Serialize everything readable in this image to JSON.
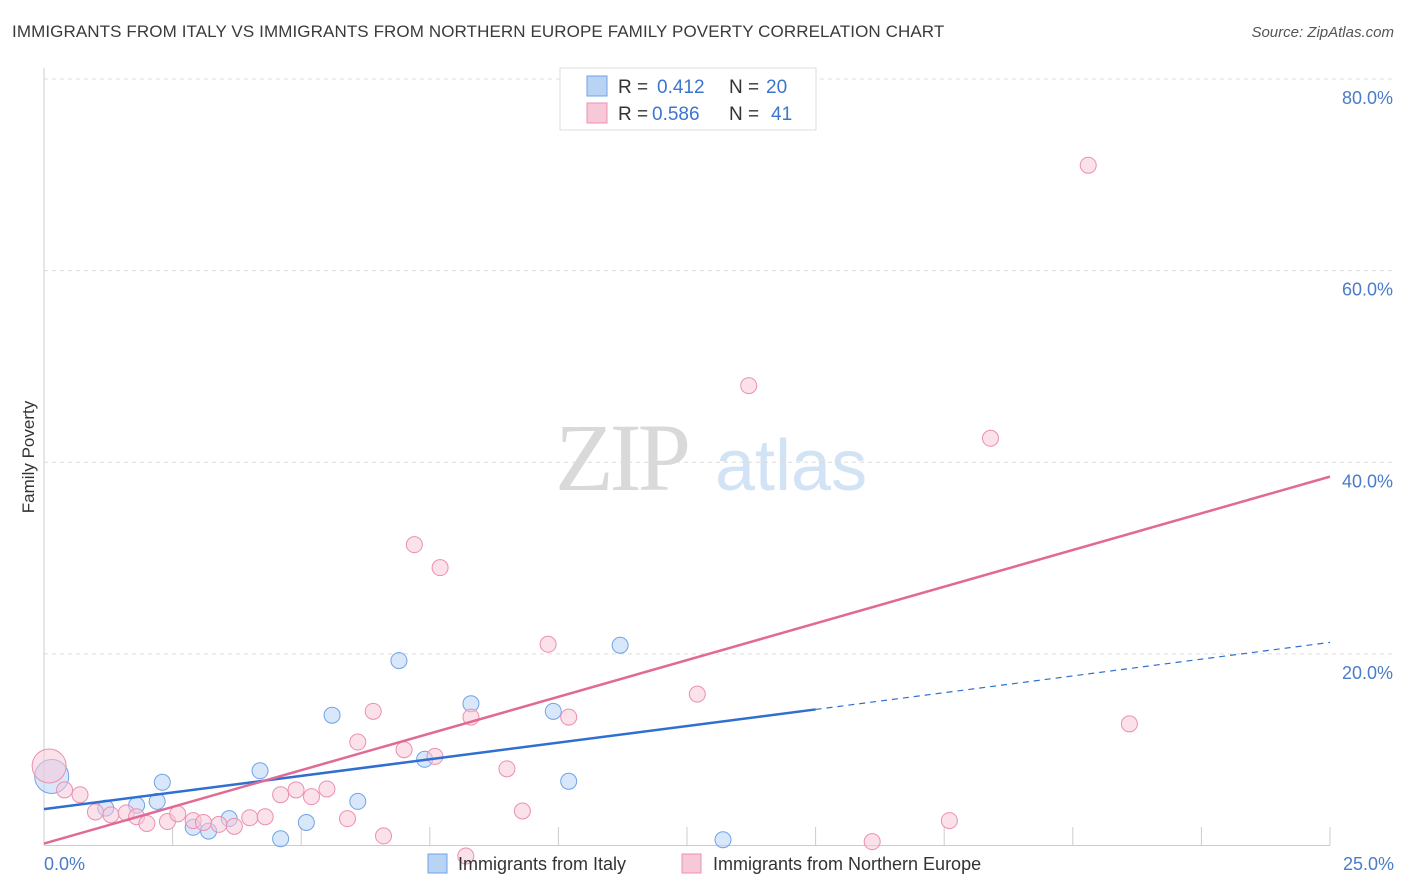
{
  "chart_data": {
    "type": "scatter",
    "title": "IMMIGRANTS FROM ITALY VS IMMIGRANTS FROM NORTHERN EUROPE FAMILY POVERTY CORRELATION CHART",
    "source": "Source: ZipAtlas.com",
    "ylabel": "Family Poverty",
    "xlabel": "",
    "xlim": [
      0,
      25
    ],
    "ylim": [
      0,
      80
    ],
    "x_tick_labels": [
      "0.0%",
      "25.0%"
    ],
    "y_ticks": [
      20,
      40,
      60,
      80
    ],
    "y_tick_labels": [
      "20.0%",
      "40.0%",
      "60.0%",
      "80.0%"
    ],
    "watermark": {
      "zip": "ZIP",
      "atlas": "atlas"
    },
    "legend": {
      "r_label": "R =",
      "n_label": "N =",
      "entries": [
        {
          "r": "0.412",
          "n": "20"
        },
        {
          "r": "0.586",
          "n": "41"
        }
      ]
    },
    "series": [
      {
        "name": "Immigrants from Italy",
        "color": "#6fa3e8",
        "fill": "#b9d3f5",
        "line_color": "#2f6fcf",
        "trend": {
          "x0": 0,
          "y0": 3.8,
          "x1": 15,
          "y1": 14.2,
          "x_dash_end": 25,
          "y_dash_end": 21.2
        },
        "points": [
          {
            "x": 0.15,
            "y": 7.2,
            "big": true
          },
          {
            "x": 1.2,
            "y": 3.9
          },
          {
            "x": 1.8,
            "y": 4.2
          },
          {
            "x": 2.2,
            "y": 4.6
          },
          {
            "x": 2.3,
            "y": 6.6
          },
          {
            "x": 2.9,
            "y": 1.9
          },
          {
            "x": 3.2,
            "y": 1.5
          },
          {
            "x": 3.6,
            "y": 2.8
          },
          {
            "x": 4.2,
            "y": 7.8
          },
          {
            "x": 4.6,
            "y": 0.7
          },
          {
            "x": 5.1,
            "y": 2.4
          },
          {
            "x": 5.6,
            "y": 13.6
          },
          {
            "x": 6.1,
            "y": 4.6
          },
          {
            "x": 6.9,
            "y": 19.3
          },
          {
            "x": 7.4,
            "y": 9.0
          },
          {
            "x": 8.3,
            "y": 14.8
          },
          {
            "x": 9.9,
            "y": 14.0
          },
          {
            "x": 10.2,
            "y": 6.7
          },
          {
            "x": 11.2,
            "y": 20.9
          },
          {
            "x": 13.2,
            "y": 0.6
          }
        ]
      },
      {
        "name": "Immigrants from Northern Europe",
        "color": "#ec8fb0",
        "fill": "#f7c8d8",
        "line_color": "#e06a95",
        "trend": {
          "x0": 0,
          "y0": 0.2,
          "x1": 25,
          "y1": 38.5
        },
        "points": [
          {
            "x": 0.1,
            "y": 8.3,
            "big": true
          },
          {
            "x": 0.4,
            "y": 5.8
          },
          {
            "x": 0.7,
            "y": 5.3
          },
          {
            "x": 1.0,
            "y": 3.5
          },
          {
            "x": 1.3,
            "y": 3.2
          },
          {
            "x": 1.6,
            "y": 3.4
          },
          {
            "x": 1.8,
            "y": 3.0
          },
          {
            "x": 2.0,
            "y": 2.3
          },
          {
            "x": 2.4,
            "y": 2.5
          },
          {
            "x": 2.6,
            "y": 3.3
          },
          {
            "x": 2.9,
            "y": 2.6
          },
          {
            "x": 3.1,
            "y": 2.4
          },
          {
            "x": 3.4,
            "y": 2.2
          },
          {
            "x": 3.7,
            "y": 2.0
          },
          {
            "x": 4.0,
            "y": 2.9
          },
          {
            "x": 4.3,
            "y": 3.0
          },
          {
            "x": 4.6,
            "y": 5.3
          },
          {
            "x": 4.9,
            "y": 5.8
          },
          {
            "x": 5.2,
            "y": 5.1
          },
          {
            "x": 5.5,
            "y": 5.9
          },
          {
            "x": 5.9,
            "y": 2.8
          },
          {
            "x": 6.1,
            "y": 10.8
          },
          {
            "x": 6.4,
            "y": 14.0
          },
          {
            "x": 6.6,
            "y": 1.0
          },
          {
            "x": 7.0,
            "y": 10.0
          },
          {
            "x": 7.2,
            "y": 31.4
          },
          {
            "x": 7.6,
            "y": 9.3
          },
          {
            "x": 7.7,
            "y": 29.0
          },
          {
            "x": 8.2,
            "y": -1.1
          },
          {
            "x": 8.3,
            "y": 13.4
          },
          {
            "x": 9.0,
            "y": 8.0
          },
          {
            "x": 9.3,
            "y": 3.6
          },
          {
            "x": 9.8,
            "y": 21.0
          },
          {
            "x": 10.2,
            "y": 13.4
          },
          {
            "x": 12.7,
            "y": 15.8
          },
          {
            "x": 13.7,
            "y": 48.0
          },
          {
            "x": 16.1,
            "y": 0.4
          },
          {
            "x": 17.6,
            "y": 2.6
          },
          {
            "x": 18.4,
            "y": 42.5
          },
          {
            "x": 20.3,
            "y": 71.0
          },
          {
            "x": 21.1,
            "y": 12.7
          }
        ]
      }
    ]
  }
}
